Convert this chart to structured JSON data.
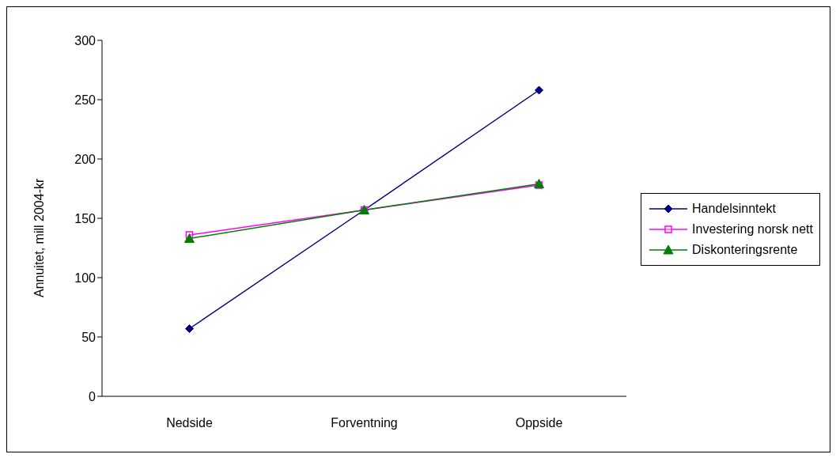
{
  "chart_data": {
    "type": "line",
    "ylabel": "Annuitet, mill 2004-kr",
    "categories": [
      "Nedside",
      "Forventning",
      "Oppside"
    ],
    "series": [
      {
        "name": "Handelsinntekt",
        "color": "#000080",
        "marker": "diamond",
        "values": [
          57,
          157,
          258
        ]
      },
      {
        "name": "Investering norsk nett",
        "color": "#ff00ff",
        "marker": "square",
        "values": [
          136,
          157,
          178
        ]
      },
      {
        "name": "Diskonteringsrente",
        "color": "#008000",
        "marker": "triangle",
        "values": [
          133,
          157,
          179
        ]
      }
    ],
    "ylim": [
      0,
      300
    ],
    "yticks": [
      0,
      50,
      100,
      150,
      200,
      250,
      300
    ],
    "grid": false,
    "legend": "right"
  }
}
